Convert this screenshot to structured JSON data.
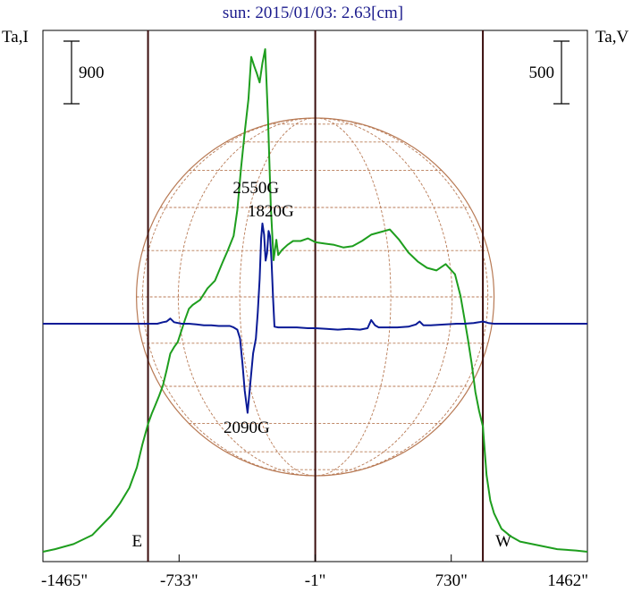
{
  "chart_data": {
    "type": "line",
    "title": "sun: 2015/01/03: 2.63[cm]",
    "left_axis_label": "Ta,I",
    "right_axis_label": "Ta,V",
    "x_ticks": [
      -1465,
      -733,
      -1,
      730,
      1462
    ],
    "x_tick_labels": [
      "-1465\"",
      "-733\"",
      "-1\"",
      "730\"",
      "1462\""
    ],
    "xlim": [
      -1465,
      1462
    ],
    "limb_markers": [
      {
        "label": "E",
        "x": -900
      },
      {
        "label": "W",
        "x": 900
      }
    ],
    "center_line_x": -1,
    "scale_bars": [
      {
        "label": "900",
        "side": "left",
        "value": 900
      },
      {
        "label": "500",
        "side": "right",
        "value": 500
      }
    ],
    "annotations": [
      {
        "text": "2550G",
        "x": -320
      },
      {
        "text": "1820G",
        "x": -240
      },
      {
        "text": "2090G",
        "x": -370
      }
    ],
    "colors": {
      "intensity": "#1e9e1e",
      "polarization": "#0a1a96",
      "limb_lines": "#3a0e0e",
      "grid": "#b87a55",
      "title": "#1a1a8c"
    },
    "series": [
      {
        "name": "Ta,I",
        "color": "#1e9e1e",
        "scale": "relative",
        "x": [
          -1465,
          -1400,
          -1300,
          -1200,
          -1100,
          -1050,
          -1000,
          -960,
          -930,
          -900,
          -880,
          -860,
          -840,
          -820,
          -800,
          -780,
          -760,
          -740,
          -720,
          -700,
          -680,
          -660,
          -620,
          -580,
          -540,
          -500,
          -470,
          -440,
          -420,
          -400,
          -380,
          -360,
          -345,
          -330,
          -315,
          -300,
          -285,
          -270,
          -255,
          -240,
          -225,
          -210,
          -200,
          -180,
          -150,
          -120,
          -80,
          -40,
          0,
          50,
          100,
          150,
          200,
          250,
          300,
          350,
          400,
          450,
          500,
          550,
          600,
          650,
          700,
          750,
          780,
          800,
          820,
          840,
          860,
          880,
          900,
          920,
          940,
          960,
          1000,
          1050,
          1100,
          1200,
          1300,
          1400,
          1462
        ],
        "values": [
          0.0,
          0.02,
          0.06,
          0.13,
          0.28,
          0.38,
          0.5,
          0.66,
          0.84,
          1.0,
          1.08,
          1.15,
          1.22,
          1.3,
          1.42,
          1.55,
          1.6,
          1.64,
          1.73,
          1.82,
          1.9,
          1.93,
          1.97,
          2.06,
          2.12,
          2.26,
          2.36,
          2.47,
          2.67,
          3.0,
          3.28,
          3.54,
          3.87,
          3.8,
          3.74,
          3.67,
          3.82,
          3.93,
          3.38,
          2.7,
          2.28,
          2.44,
          2.32,
          2.36,
          2.4,
          2.43,
          2.43,
          2.45,
          2.42,
          2.41,
          2.4,
          2.38,
          2.39,
          2.43,
          2.48,
          2.5,
          2.52,
          2.44,
          2.34,
          2.27,
          2.22,
          2.2,
          2.25,
          2.17,
          2.0,
          1.83,
          1.66,
          1.47,
          1.25,
          1.1,
          0.98,
          0.6,
          0.4,
          0.3,
          0.18,
          0.12,
          0.08,
          0.05,
          0.02,
          0.01,
          0.0
        ]
      },
      {
        "name": "Ta,V",
        "color": "#0a1a96",
        "scale": "relative",
        "x": [
          -1465,
          -1300,
          -1150,
          -1000,
          -920,
          -880,
          -850,
          -820,
          -800,
          -780,
          -760,
          -720,
          -680,
          -640,
          -600,
          -560,
          -520,
          -480,
          -460,
          -440,
          -420,
          -405,
          -392,
          -380,
          -365,
          -350,
          -335,
          -320,
          -310,
          -300,
          -292,
          -285,
          -276,
          -268,
          -260,
          -252,
          -244,
          -236,
          -228,
          -220,
          -200,
          -160,
          -100,
          -40,
          0,
          60,
          120,
          180,
          240,
          280,
          300,
          320,
          340,
          380,
          440,
          500,
          540,
          560,
          580,
          620,
          700,
          760,
          800,
          850,
          880,
          900,
          930,
          960,
          1000,
          1100,
          1200,
          1300,
          1462
        ],
        "values": [
          0.0,
          0.0,
          0.0,
          0.0,
          0.0,
          0.0,
          0.0,
          0.02,
          0.03,
          0.07,
          0.02,
          0.0,
          0.0,
          -0.01,
          -0.02,
          -0.02,
          -0.03,
          -0.03,
          -0.03,
          -0.05,
          -0.08,
          -0.2,
          -0.55,
          -0.9,
          -1.2,
          -0.8,
          -0.4,
          -0.2,
          0.15,
          0.6,
          1.15,
          1.35,
          1.2,
          0.85,
          0.95,
          1.25,
          1.18,
          0.85,
          0.35,
          -0.04,
          -0.05,
          -0.05,
          -0.05,
          -0.06,
          -0.06,
          -0.07,
          -0.08,
          -0.07,
          -0.08,
          -0.06,
          0.05,
          -0.02,
          -0.05,
          -0.05,
          -0.05,
          -0.04,
          -0.01,
          0.03,
          -0.02,
          -0.02,
          -0.01,
          0.0,
          0.0,
          0.01,
          0.02,
          0.03,
          0.01,
          0.0,
          0.0,
          0.0,
          0.0,
          0.0,
          0.0
        ]
      }
    ]
  }
}
